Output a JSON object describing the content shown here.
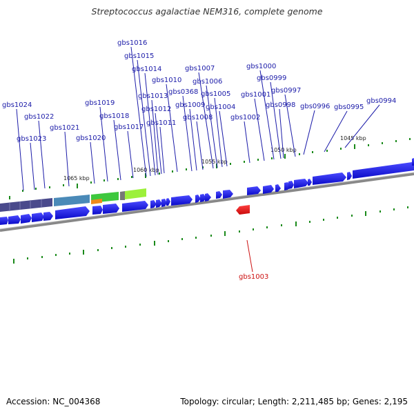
{
  "title": "Streptococcus agalactiae NEM316, complete genome",
  "footer": {
    "accession": "Accession: NC_004368",
    "summary": "Topology: circular; Length: 2,211,485 bp; Genes: 2,195"
  },
  "colors": {
    "gene": "#1010ee",
    "highlight_gene": "#ee1010",
    "label": "#1a1aa8",
    "highlight_label": "#cc1010",
    "tick": "#1a8a1a",
    "backbone": "#888888"
  },
  "scale_labels": [
    {
      "text": "1065 kbp"
    },
    {
      "text": "1060 kbp"
    },
    {
      "text": "1055 kbp"
    },
    {
      "text": "1050 kbp"
    },
    {
      "text": "1045 kbp"
    }
  ],
  "gene_labels": [
    {
      "text": "gbs1024"
    },
    {
      "text": "gbs1023"
    },
    {
      "text": "gbs1022"
    },
    {
      "text": "gbs1021"
    },
    {
      "text": "gbs1020"
    },
    {
      "text": "gbs1019"
    },
    {
      "text": "gbs1018"
    },
    {
      "text": "gbs1017"
    },
    {
      "text": "gbs1016"
    },
    {
      "text": "gbs1015"
    },
    {
      "text": "gbs1014"
    },
    {
      "text": "gbs1013"
    },
    {
      "text": "gbs1012"
    },
    {
      "text": "gbs1011"
    },
    {
      "text": "gbs1010"
    },
    {
      "text": "gbs0368"
    },
    {
      "text": "gbs1009"
    },
    {
      "text": "gbs1008"
    },
    {
      "text": "gbs1007"
    },
    {
      "text": "gbs1006"
    },
    {
      "text": "gbs1005"
    },
    {
      "text": "gbs1004"
    },
    {
      "text": "gbs1002"
    },
    {
      "text": "gbs1001"
    },
    {
      "text": "gbs1000"
    },
    {
      "text": "gbs0999"
    },
    {
      "text": "gbs0998"
    },
    {
      "text": "gbs0997"
    },
    {
      "text": "gbs0996"
    },
    {
      "text": "gbs0995"
    },
    {
      "text": "gbs0994"
    }
  ],
  "highlight_label": {
    "text": "gbs1003"
  }
}
